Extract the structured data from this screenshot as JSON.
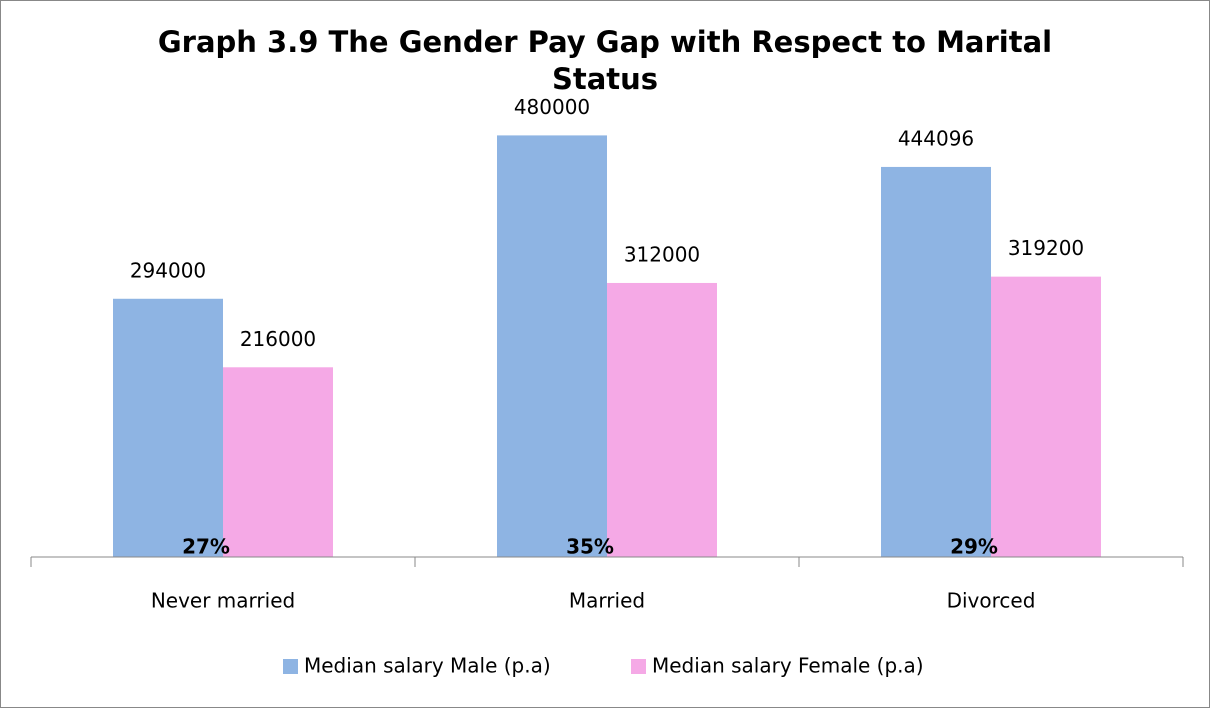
{
  "chart_data": {
    "type": "bar",
    "title": "Graph 3.9 The Gender Pay Gap with Respect to Marital Status",
    "categories": [
      "Never married",
      "Married",
      "Divorced"
    ],
    "series": [
      {
        "name": "Median salary Male (p.a)",
        "color": "#8eb4e3",
        "values": [
          294000,
          480000,
          444096
        ]
      },
      {
        "name": "Median salary Female (p.a)",
        "color": "#f5a9e6",
        "values": [
          216000,
          312000,
          319200
        ]
      }
    ],
    "annotations": [
      "27%",
      "35%",
      "29%"
    ],
    "ylim": [
      0,
      600000
    ],
    "legend": "bottom"
  }
}
